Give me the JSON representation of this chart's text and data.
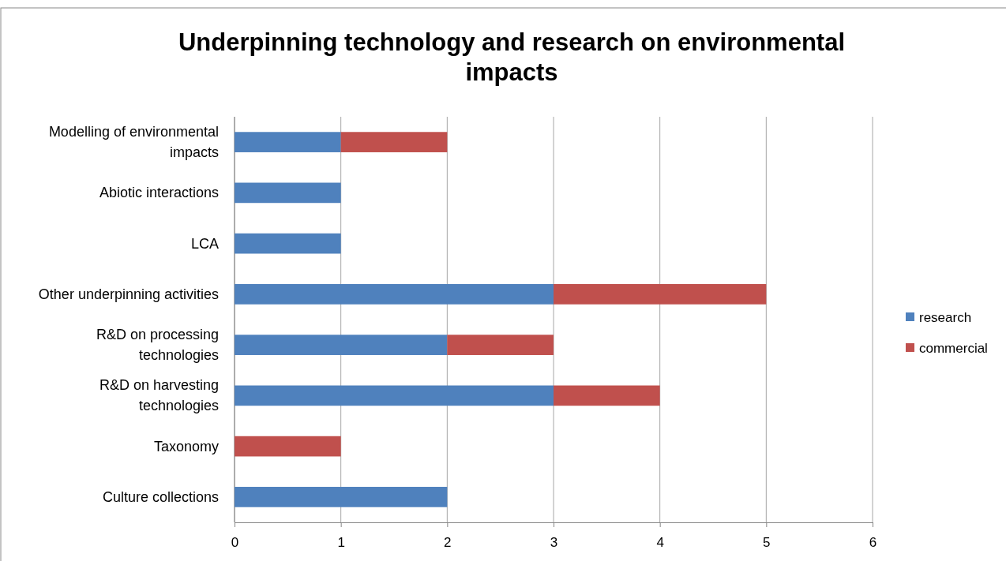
{
  "chart_data": {
    "type": "bar",
    "orientation": "horizontal",
    "stacked": true,
    "title": "Underpinning technology and research on environmental impacts",
    "categories": [
      "Modelling of environmental impacts",
      "Abiotic interactions",
      "LCA",
      "Other underpinning activities",
      "R&D on processing technologies",
      "R&D on harvesting technologies",
      "Taxonomy",
      "Culture collections"
    ],
    "series": [
      {
        "name": "research",
        "color": "#4f81bd",
        "values": [
          1,
          1,
          1,
          3,
          2,
          3,
          0,
          2
        ]
      },
      {
        "name": "commercial",
        "color": "#c0504d",
        "values": [
          1,
          0,
          0,
          2,
          1,
          1,
          1,
          0
        ]
      }
    ],
    "xlim": [
      0,
      6
    ],
    "xticks": [
      0,
      1,
      2,
      3,
      4,
      5,
      6
    ],
    "grid": "x",
    "legend": "right"
  }
}
